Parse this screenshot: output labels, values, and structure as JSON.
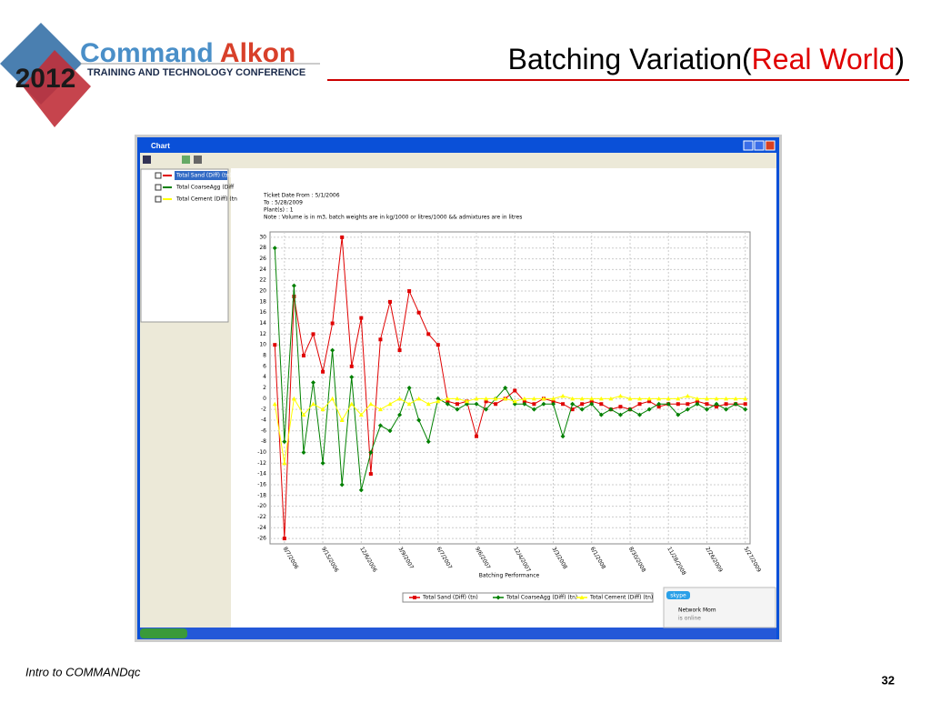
{
  "slide": {
    "logo_year": "2012",
    "logo_brand_1": "Command",
    "logo_brand_2": "Alkon",
    "logo_subtitle": "TRAINING AND TECHNOLOGY CONFERENCE",
    "title_1": "Batching Variation(",
    "title_2": "Real World",
    "title_3": ")",
    "footer": "Intro to COMMANDqc",
    "page_number": "32"
  },
  "window": {
    "title": "Chart",
    "panel_items": [
      "Total Sand (Diff) (tn)",
      "Total CoarseAgg (Diff",
      "Total Cement (Diff) (tn"
    ],
    "notes": [
      "Ticket Date From : 5/1/2006",
      "To : 5/28/2009",
      "Plant(s) : 1",
      "Note : Volume is in m3, batch weights are in kg/1000 or litres/1000 && admixtures are in litres"
    ],
    "popup_brand": "skype",
    "popup_name": "Network Mom",
    "popup_status": "is online"
  },
  "chart_data": {
    "type": "line",
    "x_label": "Batching Performance",
    "categories": [
      null,
      "8/7/2006",
      null,
      null,
      null,
      "9/15/2006",
      null,
      null,
      null,
      "12/6/2006",
      null,
      null,
      null,
      "3/9/2007",
      null,
      null,
      null,
      "6/7/2007",
      null,
      null,
      null,
      "9/6/2007",
      null,
      null,
      null,
      "12/4/2007",
      null,
      null,
      null,
      "3/3/2008",
      null,
      null,
      null,
      "6/1/2008",
      null,
      null,
      null,
      "8/30/2008",
      null,
      null,
      null,
      "11/28/2008",
      null,
      null,
      null,
      "2/26/2009",
      null,
      null,
      null,
      "5/27/2009"
    ],
    "series": [
      {
        "name": "Total Sand (Diff) (tn)",
        "color": "#e00000",
        "marker": "square",
        "values": [
          10,
          -26,
          19,
          8,
          12,
          5,
          14,
          30,
          6,
          15,
          -14,
          11,
          18,
          9,
          20,
          16,
          12,
          10,
          -0.5,
          -1,
          -0.5,
          -7,
          -0.5,
          -1,
          0,
          1.5,
          -0.5,
          -1,
          0,
          -0.5,
          -1,
          -2,
          -1,
          -0.5,
          -1,
          -2,
          -1.5,
          -2,
          -1,
          -0.5,
          -1.5,
          -1,
          -1,
          -1,
          -0.5,
          -1,
          -1.5,
          -1,
          -1,
          -1
        ]
      },
      {
        "name": "Total CoarseAgg (Diff) (tn)",
        "color": "#008000",
        "marker": "diamond",
        "values": [
          28,
          -8,
          21,
          -10,
          3,
          -12,
          9,
          -16,
          4,
          -17,
          -10,
          -5,
          -6,
          -3,
          2,
          -4,
          -8,
          0,
          -1,
          -2,
          -1,
          -1,
          -2,
          0,
          2,
          -1,
          -1,
          -2,
          -1,
          -1,
          -7,
          -1,
          -2,
          -1,
          -3,
          -2,
          -3,
          -2,
          -3,
          -2,
          -1,
          -1,
          -3,
          -2,
          -1,
          -2,
          -1,
          -2,
          -1,
          -2
        ]
      },
      {
        "name": "Total Cement (Diff) (tn)",
        "color": "#ffff00",
        "marker": "triangle",
        "values": [
          -1,
          -12,
          0,
          -3,
          -1,
          -2,
          0,
          -4,
          -1,
          -3,
          -1,
          -2,
          -1,
          0,
          -1,
          0,
          -1,
          -0.5,
          0,
          0,
          -0.5,
          0,
          0,
          0,
          0,
          -0.5,
          0,
          0,
          0,
          0,
          0.5,
          0,
          0,
          0,
          0,
          0,
          0.5,
          0,
          0,
          0,
          0,
          0,
          0,
          0.5,
          0,
          0,
          0,
          0,
          0,
          0
        ]
      }
    ],
    "ylim": [
      -27,
      31
    ],
    "yticks": [
      -26,
      -24,
      -22,
      -20,
      -18,
      -16,
      -14,
      -12,
      -10,
      -8,
      -6,
      -4,
      -2,
      0,
      2,
      4,
      6,
      8,
      10,
      12,
      14,
      16,
      18,
      20,
      22,
      24,
      26,
      28,
      30
    ],
    "grid": true
  }
}
